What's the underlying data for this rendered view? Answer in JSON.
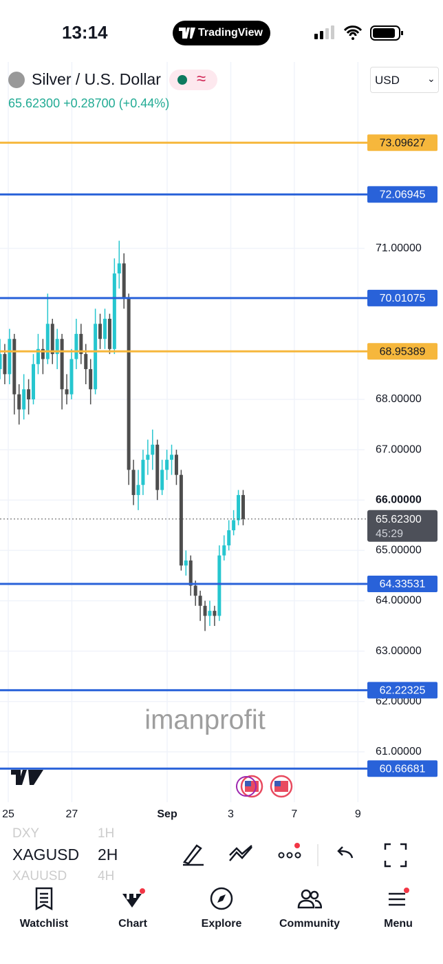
{
  "status_bar": {
    "time": "13:14",
    "app": "TradingView"
  },
  "header": {
    "symbol_name": "Silver / U.S. Dollar",
    "last": "65.62300",
    "change": "+0.28700",
    "change_pct": "(+0.44%)",
    "currency": "USD"
  },
  "chart_data": {
    "type": "candlestick",
    "watermark": "imanprofit",
    "up_color": "#26c6cf",
    "down_color": "#4d4d4d",
    "x": [
      -0.26,
      -0.11,
      0.04,
      0.19,
      0.34,
      0.49,
      0.64,
      0.79,
      0.94,
      1.09,
      1.24,
      1.39,
      1.54,
      1.69,
      1.84,
      1.99,
      2.14,
      2.29,
      2.44,
      2.59,
      2.74,
      2.89,
      3.04,
      3.19,
      3.34,
      3.49,
      3.64,
      3.79,
      3.94,
      4.09,
      4.24,
      4.39,
      4.54,
      4.69,
      4.84,
      4.99,
      5.14,
      5.29,
      5.44,
      5.59,
      5.74,
      5.89,
      6.04,
      6.19,
      6.34,
      6.49,
      6.64,
      6.79,
      6.94,
      7.09,
      7.24,
      7.39
    ],
    "open": [
      68.6,
      68.9,
      68.5,
      69.2,
      68.1,
      67.8,
      68.2,
      68.0,
      68.7,
      69.0,
      68.8,
      69.5,
      68.9,
      69.2,
      68.2,
      68.1,
      68.8,
      69.3,
      68.9,
      68.6,
      68.2,
      69.5,
      69.2,
      69.6,
      69.0,
      70.5,
      70.7,
      70.0,
      66.6,
      66.1,
      66.3,
      66.8,
      66.9,
      67.1,
      66.2,
      66.6,
      66.8,
      66.9,
      66.5,
      64.7,
      64.8,
      64.3,
      64.1,
      63.9,
      63.7,
      63.8,
      63.7,
      64.9,
      65.1,
      65.4,
      65.6,
      66.1
    ],
    "high": [
      69.2,
      69.1,
      69.4,
      69.3,
      68.3,
      68.5,
      68.4,
      68.9,
      69.3,
      69.2,
      70.1,
      69.6,
      69.4,
      69.3,
      68.5,
      69.0,
      69.6,
      69.5,
      69.1,
      68.8,
      69.8,
      69.7,
      69.8,
      69.7,
      70.8,
      71.15,
      70.9,
      70.1,
      66.8,
      66.6,
      67.0,
      67.2,
      67.4,
      67.2,
      66.8,
      67.0,
      67.1,
      67.0,
      66.6,
      65.0,
      64.9,
      64.4,
      64.2,
      64.0,
      64.0,
      63.9,
      65.1,
      65.3,
      65.6,
      65.8,
      66.2,
      66.2
    ],
    "low": [
      68.4,
      68.3,
      68.3,
      67.7,
      67.5,
      67.6,
      67.7,
      67.9,
      68.5,
      68.5,
      68.7,
      68.7,
      68.6,
      67.8,
      67.9,
      68.0,
      68.6,
      68.7,
      68.3,
      67.9,
      68.1,
      69.0,
      69.0,
      68.9,
      68.9,
      70.2,
      69.8,
      66.3,
      65.9,
      65.8,
      66.1,
      66.5,
      66.6,
      66.0,
      66.1,
      66.4,
      66.5,
      66.3,
      64.6,
      64.5,
      64.1,
      63.9,
      63.6,
      63.4,
      63.5,
      63.5,
      63.6,
      64.8,
      65.0,
      65.3,
      65.5,
      65.5
    ],
    "close": [
      68.9,
      68.5,
      69.2,
      68.1,
      67.8,
      68.2,
      68.0,
      68.7,
      69.0,
      68.8,
      69.5,
      68.9,
      69.2,
      68.2,
      68.1,
      68.8,
      69.3,
      68.9,
      68.6,
      68.2,
      69.5,
      69.2,
      69.6,
      69.0,
      70.5,
      70.7,
      70.0,
      66.6,
      66.1,
      66.3,
      66.8,
      66.9,
      67.1,
      66.2,
      66.6,
      66.8,
      66.9,
      66.5,
      64.7,
      64.8,
      64.3,
      64.1,
      63.9,
      63.7,
      63.8,
      63.7,
      64.9,
      65.1,
      65.4,
      65.6,
      66.1,
      65.623
    ],
    "xlim": [
      -0.26,
      11.21
    ],
    "ylim": [
      60,
      74.7
    ],
    "xticks": [
      {
        "value": 0,
        "label": "25"
      },
      {
        "value": 2,
        "label": "27"
      },
      {
        "value": 5,
        "label": "Sep"
      },
      {
        "value": 7,
        "label": "3"
      },
      {
        "value": 9,
        "label": "7"
      },
      {
        "value": 11,
        "label": "9"
      }
    ],
    "yticks": [
      {
        "value": 61,
        "label": "61.00000"
      },
      {
        "value": 62,
        "label": "62.00000"
      },
      {
        "value": 63,
        "label": "63.00000"
      },
      {
        "value": 64,
        "label": "64.00000"
      },
      {
        "value": 65,
        "label": "65.00000"
      },
      {
        "value": 66,
        "label": "66.00000"
      },
      {
        "value": 67,
        "label": "67.00000"
      },
      {
        "value": 68,
        "label": "68.00000"
      },
      {
        "value": 71,
        "label": "71.00000"
      }
    ],
    "grid": true,
    "levels": [
      {
        "value": 73.09627,
        "color": "#f6b73c"
      },
      {
        "value": 72.06945,
        "color": "#2962d9"
      },
      {
        "value": 70.01075,
        "color": "#2962d9"
      },
      {
        "value": 68.95389,
        "color": "#f6b73c"
      },
      {
        "value": 64.33531,
        "color": "#2962d9"
      },
      {
        "value": 62.22325,
        "color": "#2962d9"
      },
      {
        "value": 60.66681,
        "color": "#2962d9"
      }
    ],
    "last_price": {
      "value": 65.623,
      "label": "65.62300"
    },
    "countdown": "45:29"
  },
  "toolbar": {
    "symbols": [
      "DXY",
      "XAGUSD",
      "XAUUSD"
    ],
    "intervals": [
      "1H",
      "2H",
      "4H"
    ]
  },
  "nav": [
    "Watchlist",
    "Chart",
    "Explore",
    "Community",
    "Menu"
  ]
}
